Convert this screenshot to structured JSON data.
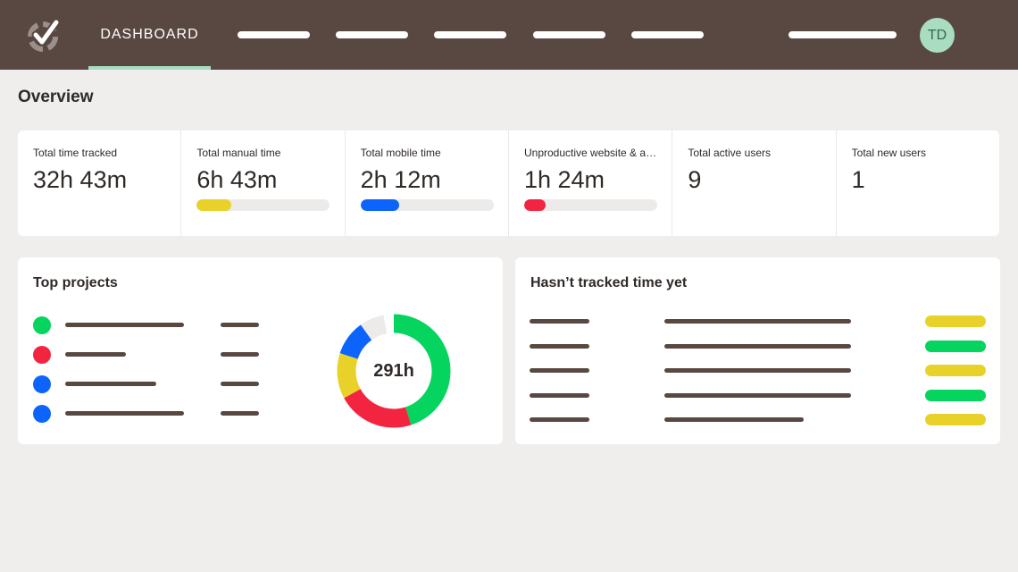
{
  "header": {
    "active_tab": "DASHBOARD",
    "avatar_initials": "TD"
  },
  "overview": {
    "title": "Overview",
    "stats": [
      {
        "label": "Total time tracked",
        "value": "32h 43m"
      },
      {
        "label": "Total manual time",
        "value": "6h 43m",
        "progress": 0.26,
        "color": "#e8d229"
      },
      {
        "label": "Total mobile time",
        "value": "2h 12m",
        "progress": 0.29,
        "color": "#0c64fd"
      },
      {
        "label": "Unproductive website & ap...",
        "value": "1h 24m",
        "progress": 0.16,
        "color": "#f3243f"
      },
      {
        "label": "Total active users",
        "value": "9"
      },
      {
        "label": "Total new users",
        "value": "1"
      }
    ]
  },
  "top_projects": {
    "title": "Top projects",
    "project_colors": [
      "#05d45e",
      "#f3243f",
      "#0c64fd",
      "#0c64fd"
    ],
    "total": "291h",
    "donut_segments": [
      {
        "value": 0.45,
        "color": "#05d45e"
      },
      {
        "value": 0.22,
        "color": "#f3243f"
      },
      {
        "value": 0.13,
        "color": "#e8d229"
      },
      {
        "value": 0.1,
        "color": "#0c64fd"
      },
      {
        "value": 0.07,
        "color": "#ecebe9"
      }
    ]
  },
  "not_tracked": {
    "title": "Hasn’t tracked time yet",
    "status_colors": [
      "#e8d229",
      "#05d45e",
      "#e8d229",
      "#05d45e",
      "#e8d229"
    ]
  },
  "colors": {
    "topbar": "#584841",
    "accent": "#a9dcc0",
    "placeholder_text": "#584841"
  }
}
